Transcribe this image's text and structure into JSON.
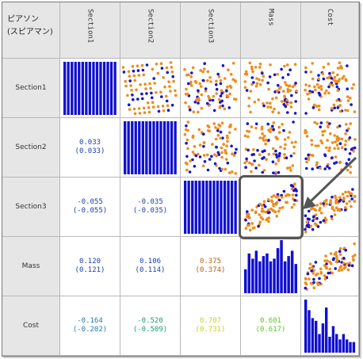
{
  "corner": {
    "line1": "ピアソン",
    "line2": "(スピアマン)"
  },
  "variables": [
    "Section1",
    "Section2",
    "Section3",
    "Mass",
    "Cost"
  ],
  "row_labels": [
    "Section1",
    "Section2",
    "Section3",
    "Mass",
    "Cost"
  ],
  "colors": {
    "point_orange": "#f08c1a",
    "point_blue": "#1414d2",
    "hist_blue": "#1010d0",
    "header_bg": "#e6e6e6",
    "grid_line": "#b8b8b8",
    "highlight_box": "#555555"
  },
  "chart_data": {
    "type": "scatter",
    "layout": "scatter-matrix",
    "variables": [
      "Section1",
      "Section2",
      "Section3",
      "Mass",
      "Cost"
    ],
    "correlations": [
      {
        "row": "Section2",
        "col": "Section1",
        "pearson": "0.033",
        "spearman": "(0.033)",
        "color": "#1a3fb0"
      },
      {
        "row": "Section3",
        "col": "Section1",
        "pearson": "-0.055",
        "spearman": "(-0.055)",
        "color": "#1a3fb0"
      },
      {
        "row": "Section3",
        "col": "Section2",
        "pearson": "-0.035",
        "spearman": "(-0.035)",
        "color": "#1a3fb0"
      },
      {
        "row": "Mass",
        "col": "Section1",
        "pearson": "0.120",
        "spearman": "(0.121)",
        "color": "#1a3fb0"
      },
      {
        "row": "Mass",
        "col": "Section2",
        "pearson": "0.106",
        "spearman": "(0.114)",
        "color": "#1a3fb0"
      },
      {
        "row": "Mass",
        "col": "Section3",
        "pearson": "0.375",
        "spearman": "(0.374)",
        "color": "#b8620e"
      },
      {
        "row": "Cost",
        "col": "Section1",
        "pearson": "-0.164",
        "spearman": "(-0.202)",
        "color": "#1f7ab0"
      },
      {
        "row": "Cost",
        "col": "Section2",
        "pearson": "-0.520",
        "spearman": "(-0.509)",
        "color": "#14a070"
      },
      {
        "row": "Cost",
        "col": "Section3",
        "pearson": "0.707",
        "spearman": "(0.731)",
        "color": "#c8d21e"
      },
      {
        "row": "Cost",
        "col": "Mass",
        "pearson": "0.601",
        "spearman": "(0.617)",
        "color": "#5ac81e"
      }
    ],
    "histograms": {
      "Section1": {
        "kind": "uniform",
        "bars": 15
      },
      "Section2": {
        "kind": "uniform",
        "bars": 15
      },
      "Section3": {
        "kind": "uniform",
        "bars": 15
      },
      "Mass": {
        "kind": "counts",
        "values": [
          0.45,
          0.75,
          0.65,
          0.8,
          0.6,
          0.7,
          0.75,
          0.6,
          0.65,
          0.85,
          1.0,
          0.6,
          0.7,
          0.8,
          0.55
        ]
      },
      "Cost": {
        "kind": "counts",
        "values": [
          1.0,
          0.8,
          0.65,
          0.6,
          0.35,
          0.55,
          0.85,
          0.3,
          0.5,
          0.35,
          0.25,
          0.35,
          0.25,
          0.2,
          0.2
        ]
      }
    },
    "highlighted_panel": {
      "row": "Section3",
      "col": "Mass"
    }
  }
}
